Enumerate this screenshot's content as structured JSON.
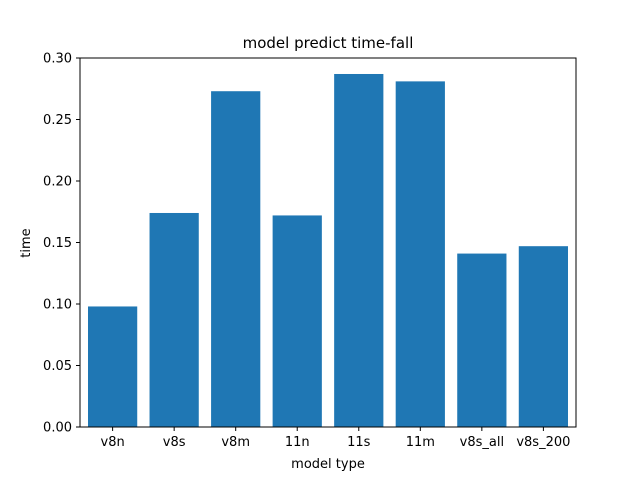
{
  "chart_data": {
    "type": "bar",
    "title": "model predict time-fall",
    "xlabel": "model type",
    "ylabel": "time",
    "categories": [
      "v8n",
      "v8s",
      "v8m",
      "11n",
      "11s",
      "11m",
      "v8s_all",
      "v8s_200"
    ],
    "values": [
      0.098,
      0.174,
      0.273,
      0.172,
      0.287,
      0.281,
      0.141,
      0.147
    ],
    "ylim": [
      0,
      0.3
    ],
    "yticks": [
      "0.00",
      "0.05",
      "0.10",
      "0.15",
      "0.20",
      "0.25",
      "0.30"
    ],
    "grid": false,
    "bar_color": "#1f77b4"
  }
}
